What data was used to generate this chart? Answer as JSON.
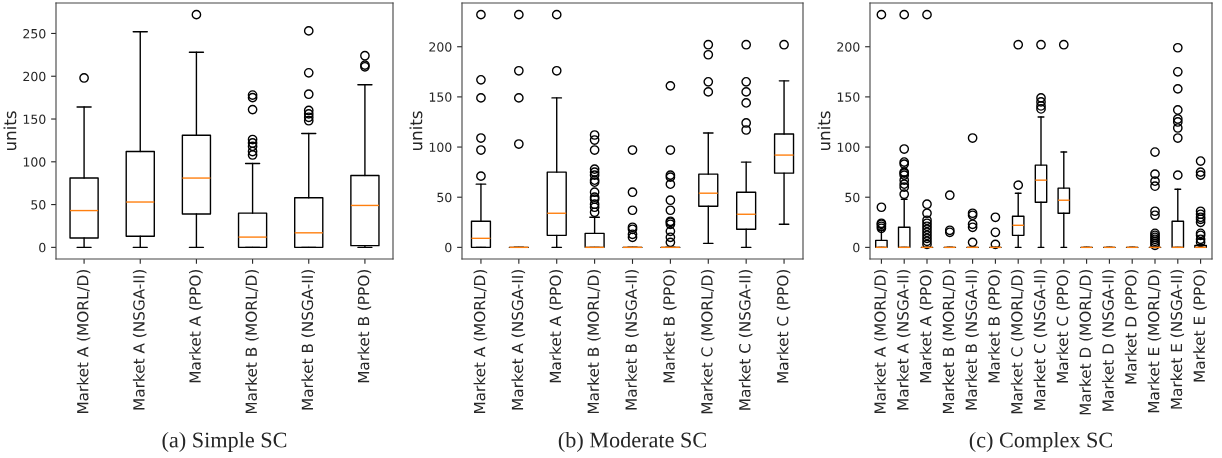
{
  "chart_data": [
    {
      "type": "box",
      "title": "(a) Simple SC",
      "ylabel": "units",
      "ylim": [
        -13.6,
        285.6
      ],
      "yticks": [
        0,
        50,
        100,
        150,
        200,
        250
      ],
      "categories": [
        "Market A (MORL/D)",
        "Market A (NSGA-II)",
        "Market A (PPO)",
        "Market B (MORL/D)",
        "Market B (NSGA-II)",
        "Market B (PPO)"
      ],
      "boxes": [
        {
          "low": 0,
          "q1": 11,
          "median": 43,
          "q3": 81,
          "high": 164,
          "outliers": [
            198
          ]
        },
        {
          "low": 0,
          "q1": 13,
          "median": 53,
          "q3": 112,
          "high": 252
        },
        {
          "low": 0,
          "q1": 39,
          "median": 81,
          "q3": 131,
          "high": 228,
          "outliers": [
            272
          ]
        },
        {
          "low": 0,
          "q1": 0,
          "median": 12,
          "q3": 40,
          "high": 98,
          "outliers": [
            108,
            112,
            118,
            122,
            126,
            161,
            175,
            178
          ]
        },
        {
          "low": 0,
          "q1": 0,
          "median": 17,
          "q3": 58,
          "high": 133,
          "outliers": [
            148,
            152,
            156,
            160,
            179,
            204,
            253
          ]
        },
        {
          "low": 0,
          "q1": 2,
          "median": 49,
          "q3": 84,
          "high": 190,
          "outliers": [
            211,
            213,
            224
          ]
        }
      ]
    },
    {
      "type": "box",
      "title": "(b) Moderate SC",
      "ylabel": "units",
      "ylim": [
        -11.6,
        243.6
      ],
      "yticks": [
        0,
        50,
        100,
        150,
        200
      ],
      "categories": [
        "Market A (MORL/D)",
        "Market A (NSGA-II)",
        "Market A (PPO)",
        "Market B (MORL/D)",
        "Market B (NSGA-II)",
        "Market B (PPO)",
        "Market C (MORL/D)",
        "Market C (NSGA-II)",
        "Market C (PPO)"
      ],
      "boxes": [
        {
          "low": 0,
          "q1": 0,
          "median": 9,
          "q3": 26,
          "high": 63,
          "outliers": [
            71,
            97,
            109,
            149,
            167,
            232
          ]
        },
        {
          "low": 0,
          "q1": 0,
          "median": 0,
          "q3": 0,
          "high": 0,
          "outliers": [
            103,
            149,
            176,
            232
          ]
        },
        {
          "low": 0,
          "q1": 12,
          "median": 34,
          "q3": 75,
          "high": 149,
          "outliers": [
            176,
            232
          ]
        },
        {
          "low": 0,
          "q1": 0,
          "median": 0,
          "q3": 14,
          "high": 30,
          "outliers": [
            35,
            40,
            43,
            48,
            50,
            55,
            65,
            67,
            72,
            75,
            78,
            97,
            107,
            112
          ]
        },
        {
          "low": 0,
          "q1": 0,
          "median": 0,
          "q3": 0,
          "high": 0,
          "outliers": [
            10,
            13,
            18,
            20,
            37,
            55,
            97
          ]
        },
        {
          "low": 0,
          "q1": 0,
          "median": 0,
          "q3": 0,
          "high": 0,
          "outliers": [
            5,
            10,
            16,
            23,
            25,
            26,
            37,
            47,
            63,
            70,
            72,
            97,
            161
          ]
        },
        {
          "low": 4,
          "q1": 41,
          "median": 54,
          "q3": 73,
          "high": 114,
          "outliers": [
            155,
            165,
            192,
            202
          ]
        },
        {
          "low": 0,
          "q1": 18,
          "median": 33,
          "q3": 55,
          "high": 85,
          "outliers": [
            117,
            124,
            144,
            155,
            165,
            202
          ]
        },
        {
          "low": 23,
          "q1": 74,
          "median": 92,
          "q3": 113,
          "high": 166,
          "outliers": [
            202
          ]
        }
      ]
    },
    {
      "type": "box",
      "title": "(c) Complex SC",
      "ylabel": "units",
      "ylim": [
        -11.6,
        243.6
      ],
      "yticks": [
        0,
        50,
        100,
        150,
        200
      ],
      "categories": [
        "Market A (MORL/D)",
        "Market A (NSGA-II)",
        "Market A (PPO)",
        "Market B (MORL/D)",
        "Market B (NSGA-II)",
        "Market B (PPO)",
        "Market C (MORL/D)",
        "Market C (NSGA-II)",
        "Market C (PPO)",
        "Market D (MORL/D)",
        "Market D (NSGA-II)",
        "Market D (PPO)",
        "Market E (MORL/D)",
        "Market E (NSGA-II)",
        "Market E (PPO)"
      ],
      "boxes": [
        {
          "low": 0,
          "q1": 0,
          "median": 0,
          "q3": 7,
          "high": 17,
          "outliers": [
            19,
            21,
            23,
            24,
            40,
            232
          ]
        },
        {
          "low": 0,
          "q1": 0,
          "median": 0,
          "q3": 20,
          "high": 48,
          "outliers": [
            53,
            60,
            63,
            67,
            72,
            74,
            75,
            83,
            85,
            98,
            232
          ]
        },
        {
          "low": 0,
          "q1": 0,
          "median": 0,
          "q3": 0,
          "high": 0,
          "outliers": [
            3,
            6,
            9,
            12,
            15,
            18,
            21,
            24,
            27,
            34,
            43,
            232
          ]
        },
        {
          "low": 0,
          "q1": 0,
          "median": 0,
          "q3": 0,
          "high": 0,
          "outliers": [
            15,
            17,
            52
          ]
        },
        {
          "low": 0,
          "q1": 0,
          "median": 0,
          "q3": 0,
          "high": 0,
          "outliers": [
            5,
            20,
            23,
            32,
            34,
            109
          ]
        },
        {
          "low": 0,
          "q1": 0,
          "median": 0,
          "q3": 0,
          "high": 0,
          "outliers": [
            3,
            15,
            30
          ]
        },
        {
          "low": 0,
          "q1": 12,
          "median": 22,
          "q3": 31,
          "high": 54,
          "outliers": [
            62,
            202
          ]
        },
        {
          "low": 0,
          "q1": 45,
          "median": 67,
          "q3": 82,
          "high": 130,
          "outliers": [
            138,
            141,
            145,
            149,
            202
          ]
        },
        {
          "low": 0,
          "q1": 34,
          "median": 47,
          "q3": 59,
          "high": 95,
          "outliers": [
            202
          ]
        },
        {
          "low": 0,
          "q1": 0,
          "median": 0,
          "q3": 0,
          "high": 0
        },
        {
          "low": 0,
          "q1": 0,
          "median": 0,
          "q3": 0,
          "high": 0
        },
        {
          "low": 0,
          "q1": 0,
          "median": 0,
          "q3": 0,
          "high": 0
        },
        {
          "low": 0,
          "q1": 0,
          "median": 0,
          "q3": 0,
          "high": 0,
          "outliers": [
            2,
            4,
            6,
            8,
            10,
            12,
            14,
            32,
            36,
            61,
            66,
            73,
            95
          ]
        },
        {
          "low": 0,
          "q1": 0,
          "median": 0,
          "q3": 26,
          "high": 58,
          "outliers": [
            72,
            109,
            119,
            125,
            128,
            137,
            158,
            175,
            199
          ]
        },
        {
          "low": 0,
          "q1": 0,
          "median": 0,
          "q3": 2,
          "high": 3,
          "outliers": [
            5,
            8,
            12,
            14,
            25,
            28,
            30,
            33,
            36,
            72,
            75,
            86
          ]
        }
      ]
    }
  ]
}
